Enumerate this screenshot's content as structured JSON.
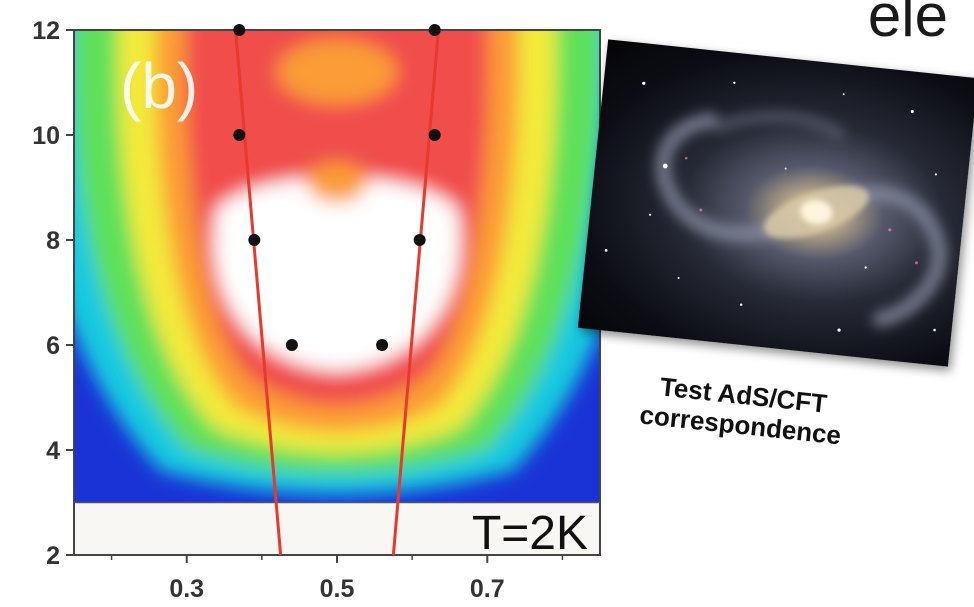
{
  "corner_text": "ele",
  "photo": {
    "subject": "barred spiral galaxy",
    "icon": "galaxy-image"
  },
  "caption": {
    "line1": "Test AdS/CFT",
    "line2": "correspondence"
  },
  "chart_data": {
    "type": "heatmap",
    "panel_label": "(b)",
    "annotation": "T=2K",
    "xlim": [
      0.15,
      0.85
    ],
    "ylim": [
      2,
      12
    ],
    "x_ticks": [
      0.3,
      0.5,
      0.7
    ],
    "x_tick_labels": [
      "0.3",
      "0.5",
      "0.7"
    ],
    "y_ticks": [
      2,
      4,
      6,
      8,
      10,
      12
    ],
    "y_tick_labels": [
      "2",
      "4",
      "6",
      "8",
      "10",
      "12"
    ],
    "no_data_below_y": 3,
    "points": [
      {
        "x": 0.37,
        "y": 12
      },
      {
        "x": 0.63,
        "y": 12
      },
      {
        "x": 0.37,
        "y": 10
      },
      {
        "x": 0.63,
        "y": 10
      },
      {
        "x": 0.39,
        "y": 8
      },
      {
        "x": 0.61,
        "y": 8
      },
      {
        "x": 0.44,
        "y": 6
      },
      {
        "x": 0.56,
        "y": 6
      }
    ],
    "lines": [
      {
        "points": [
          [
            0.365,
            12
          ],
          [
            0.425,
            2
          ]
        ],
        "color": "#e8392d"
      },
      {
        "points": [
          [
            0.635,
            12
          ],
          [
            0.575,
            2
          ]
        ],
        "color": "#e8392d"
      }
    ],
    "colors": {
      "low": "#1a33d6",
      "mid": "#16c9e0",
      "green": "#5ee05a",
      "yellow": "#f3ea3a",
      "orange": "#fb9c34",
      "red": "#f04e4b",
      "high": "#ffffff",
      "point": "#111111"
    }
  }
}
